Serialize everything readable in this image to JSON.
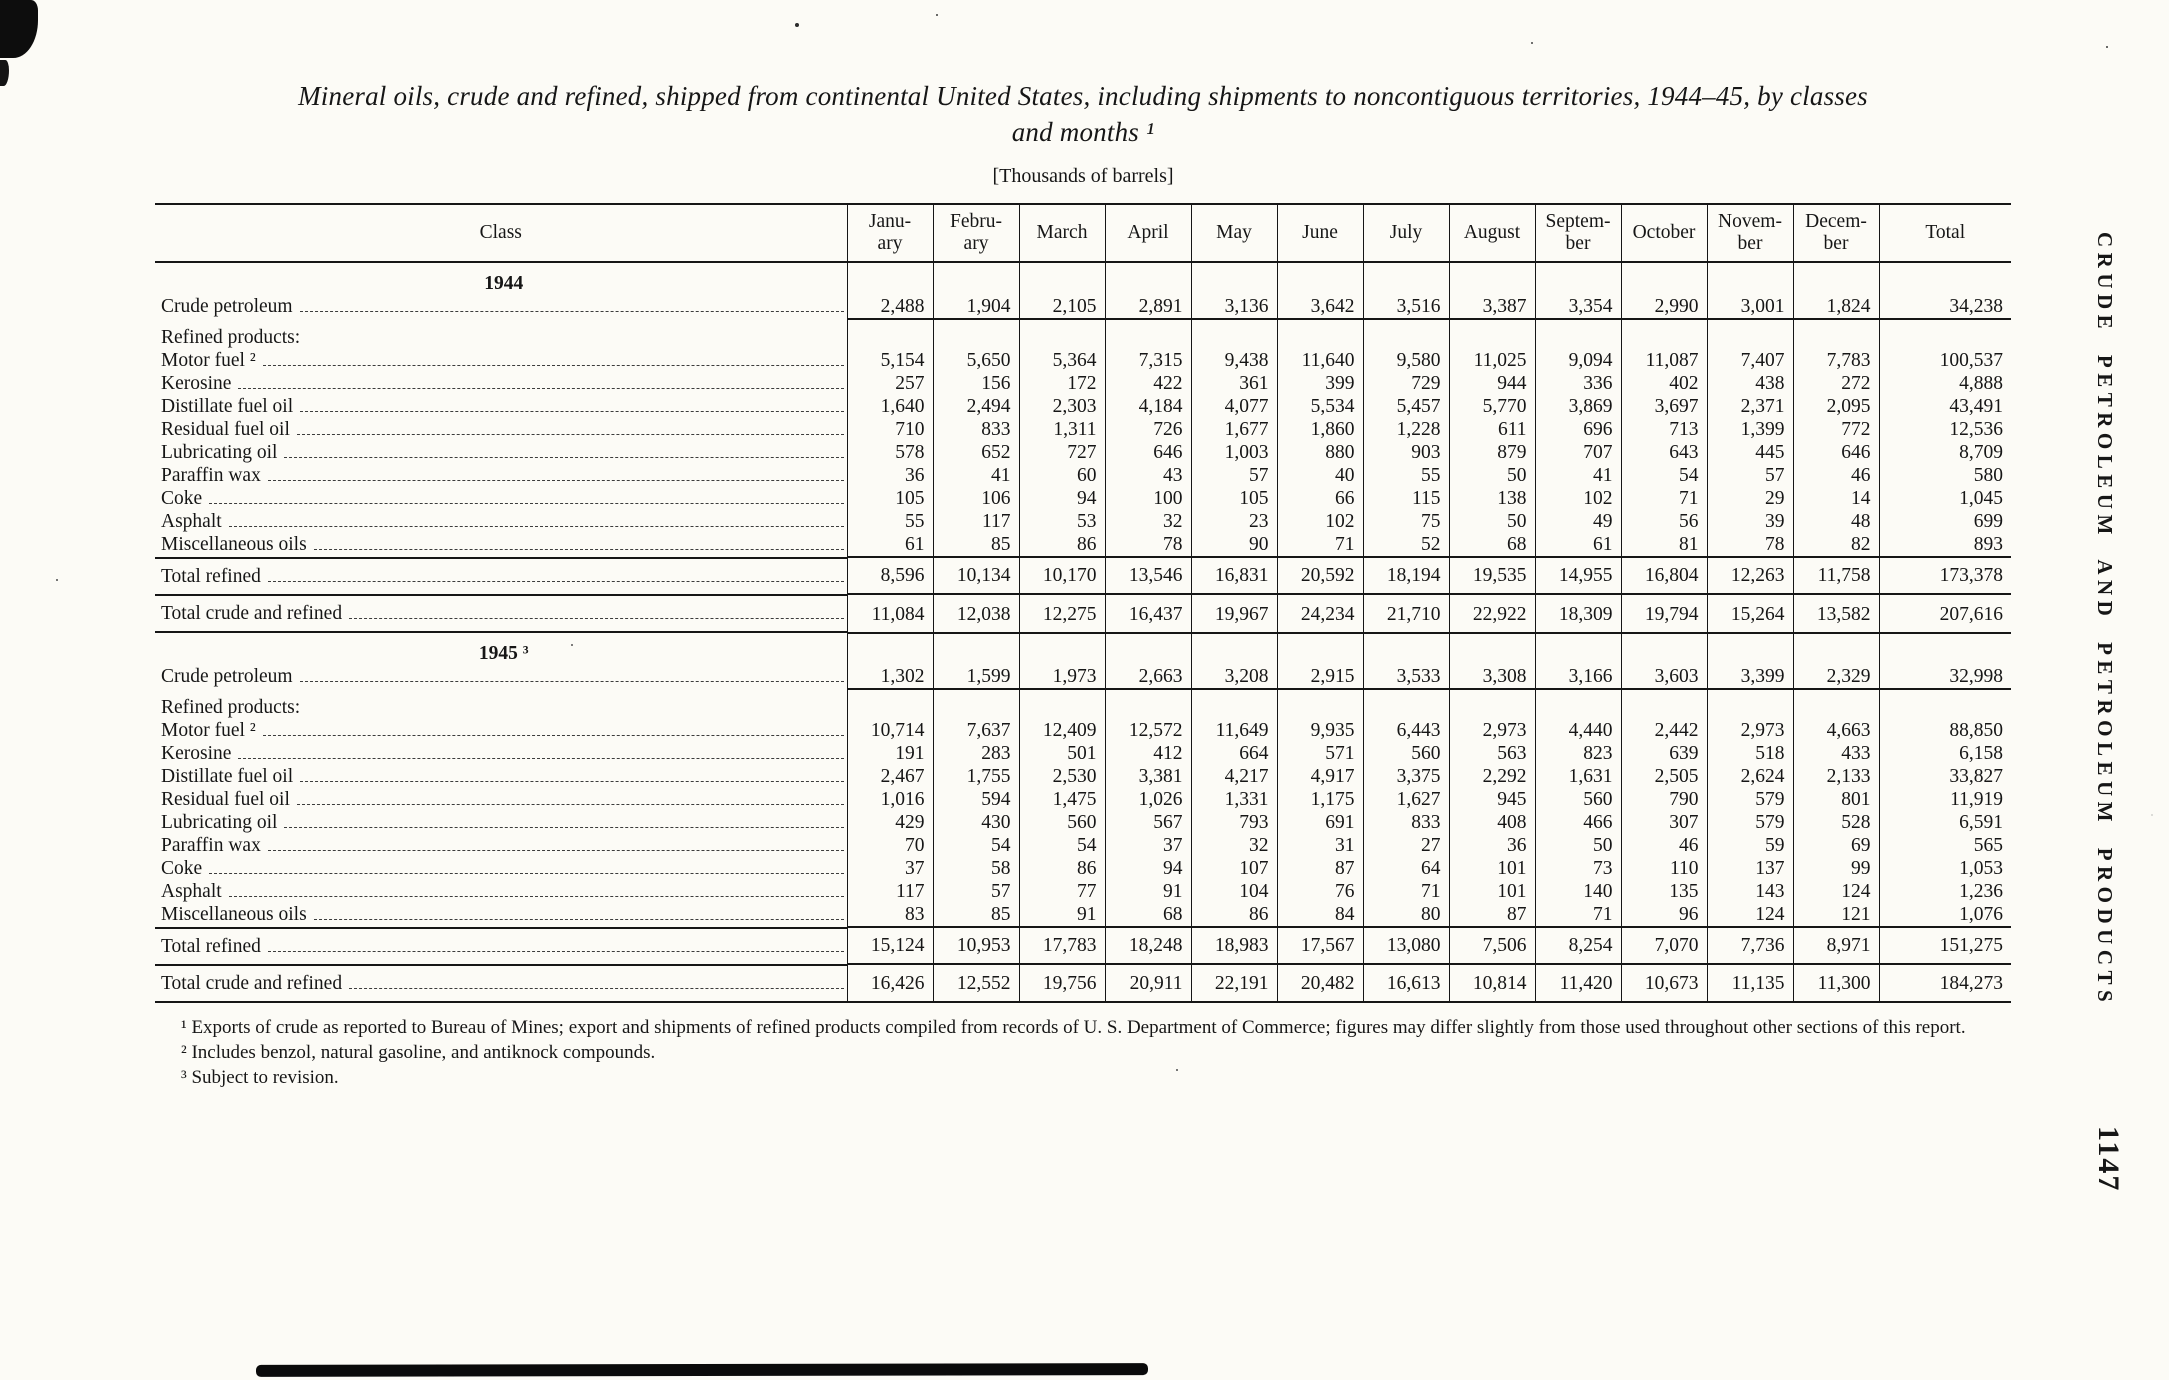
{
  "page": {
    "title_line1": "Mineral oils, crude and refined, shipped from continental United States, including shipments to noncontiguous territories, 1944–45, by classes",
    "title_line2": "and months ¹",
    "units_note": "[Thousands of barrels]",
    "side_label": "CRUDE PETROLEUM AND PETROLEUM PRODUCTS",
    "page_number": "1147"
  },
  "table": {
    "columns": [
      "Class",
      "Janu-\nary",
      "Febru-\nary",
      "March",
      "April",
      "May",
      "June",
      "July",
      "August",
      "Septem-\nber",
      "October",
      "Novem-\nber",
      "Decem-\nber",
      "Total"
    ],
    "rows": [
      {
        "type": "year",
        "label": "1944"
      },
      {
        "type": "data",
        "label": "Crude petroleum",
        "indent": 0,
        "rules": [
          "numbottom"
        ],
        "values": [
          "2,488",
          "1,904",
          "2,105",
          "2,891",
          "3,136",
          "3,642",
          "3,516",
          "3,387",
          "3,354",
          "2,990",
          "3,001",
          "1,824",
          "34,238"
        ]
      },
      {
        "type": "group",
        "label": "Refined products:"
      },
      {
        "type": "data",
        "label": "Motor fuel ²",
        "indent": 1,
        "values": [
          "5,154",
          "5,650",
          "5,364",
          "7,315",
          "9,438",
          "11,640",
          "9,580",
          "11,025",
          "9,094",
          "11,087",
          "7,407",
          "7,783",
          "100,537"
        ]
      },
      {
        "type": "data",
        "label": "Kerosine",
        "indent": 1,
        "values": [
          "257",
          "156",
          "172",
          "422",
          "361",
          "399",
          "729",
          "944",
          "336",
          "402",
          "438",
          "272",
          "4,888"
        ]
      },
      {
        "type": "data",
        "label": "Distillate fuel oil",
        "indent": 1,
        "values": [
          "1,640",
          "2,494",
          "2,303",
          "4,184",
          "4,077",
          "5,534",
          "5,457",
          "5,770",
          "3,869",
          "3,697",
          "2,371",
          "2,095",
          "43,491"
        ]
      },
      {
        "type": "data",
        "label": "Residual fuel oil",
        "indent": 1,
        "values": [
          "710",
          "833",
          "1,311",
          "726",
          "1,677",
          "1,860",
          "1,228",
          "611",
          "696",
          "713",
          "1,399",
          "772",
          "12,536"
        ]
      },
      {
        "type": "data",
        "label": "Lubricating oil",
        "indent": 1,
        "values": [
          "578",
          "652",
          "727",
          "646",
          "1,003",
          "880",
          "903",
          "879",
          "707",
          "643",
          "445",
          "646",
          "8,709"
        ]
      },
      {
        "type": "data",
        "label": "Paraffin wax",
        "indent": 1,
        "values": [
          "36",
          "41",
          "60",
          "43",
          "57",
          "40",
          "55",
          "50",
          "41",
          "54",
          "57",
          "46",
          "580"
        ]
      },
      {
        "type": "data",
        "label": "Coke",
        "indent": 1,
        "values": [
          "105",
          "106",
          "94",
          "100",
          "105",
          "66",
          "115",
          "138",
          "102",
          "71",
          "29",
          "14",
          "1,045"
        ]
      },
      {
        "type": "data",
        "label": "Asphalt",
        "indent": 1,
        "values": [
          "55",
          "117",
          "53",
          "32",
          "23",
          "102",
          "75",
          "50",
          "49",
          "56",
          "39",
          "48",
          "699"
        ]
      },
      {
        "type": "data",
        "label": "Miscellaneous oils",
        "indent": 1,
        "values": [
          "61",
          "85",
          "86",
          "78",
          "90",
          "71",
          "52",
          "68",
          "61",
          "81",
          "78",
          "82",
          "893"
        ]
      },
      {
        "type": "total",
        "label": "Total refined",
        "indent": 2,
        "rules": [
          "top"
        ],
        "values": [
          "8,596",
          "10,134",
          "10,170",
          "13,546",
          "16,831",
          "20,592",
          "18,194",
          "19,535",
          "14,955",
          "16,804",
          "12,263",
          "11,758",
          "173,378"
        ]
      },
      {
        "type": "total",
        "label": "Total crude and refined",
        "indent": 2,
        "rules": [
          "top",
          "bottom"
        ],
        "values": [
          "11,084",
          "12,038",
          "12,275",
          "16,437",
          "19,967",
          "24,234",
          "21,710",
          "22,922",
          "18,309",
          "19,794",
          "15,264",
          "13,582",
          "207,616"
        ]
      },
      {
        "type": "year",
        "label": "1945 ³"
      },
      {
        "type": "data",
        "label": "Crude petroleum",
        "indent": 0,
        "rules": [
          "numbottom"
        ],
        "values": [
          "1,302",
          "1,599",
          "1,973",
          "2,663",
          "3,208",
          "2,915",
          "3,533",
          "3,308",
          "3,166",
          "3,603",
          "3,399",
          "2,329",
          "32,998"
        ]
      },
      {
        "type": "group",
        "label": "Refined products:"
      },
      {
        "type": "data",
        "label": "Motor fuel ²",
        "indent": 1,
        "values": [
          "10,714",
          "7,637",
          "12,409",
          "12,572",
          "11,649",
          "9,935",
          "6,443",
          "2,973",
          "4,440",
          "2,442",
          "2,973",
          "4,663",
          "88,850"
        ]
      },
      {
        "type": "data",
        "label": "Kerosine",
        "indent": 1,
        "values": [
          "191",
          "283",
          "501",
          "412",
          "664",
          "571",
          "560",
          "563",
          "823",
          "639",
          "518",
          "433",
          "6,158"
        ]
      },
      {
        "type": "data",
        "label": "Distillate fuel oil",
        "indent": 1,
        "values": [
          "2,467",
          "1,755",
          "2,530",
          "3,381",
          "4,217",
          "4,917",
          "3,375",
          "2,292",
          "1,631",
          "2,505",
          "2,624",
          "2,133",
          "33,827"
        ]
      },
      {
        "type": "data",
        "label": "Residual fuel oil",
        "indent": 1,
        "values": [
          "1,016",
          "594",
          "1,475",
          "1,026",
          "1,331",
          "1,175",
          "1,627",
          "945",
          "560",
          "790",
          "579",
          "801",
          "11,919"
        ]
      },
      {
        "type": "data",
        "label": "Lubricating oil",
        "indent": 1,
        "values": [
          "429",
          "430",
          "560",
          "567",
          "793",
          "691",
          "833",
          "408",
          "466",
          "307",
          "579",
          "528",
          "6,591"
        ]
      },
      {
        "type": "data",
        "label": "Paraffin wax",
        "indent": 1,
        "values": [
          "70",
          "54",
          "54",
          "37",
          "32",
          "31",
          "27",
          "36",
          "50",
          "46",
          "59",
          "69",
          "565"
        ]
      },
      {
        "type": "data",
        "label": "Coke",
        "indent": 1,
        "values": [
          "37",
          "58",
          "86",
          "94",
          "107",
          "87",
          "64",
          "101",
          "73",
          "110",
          "137",
          "99",
          "1,053"
        ]
      },
      {
        "type": "data",
        "label": "Asphalt",
        "indent": 1,
        "values": [
          "117",
          "57",
          "77",
          "91",
          "104",
          "76",
          "71",
          "101",
          "140",
          "135",
          "143",
          "124",
          "1,236"
        ]
      },
      {
        "type": "data",
        "label": "Miscellaneous oils",
        "indent": 1,
        "values": [
          "83",
          "85",
          "91",
          "68",
          "86",
          "84",
          "80",
          "87",
          "71",
          "96",
          "124",
          "121",
          "1,076"
        ]
      },
      {
        "type": "total",
        "label": "Total refined",
        "indent": 2,
        "rules": [
          "top"
        ],
        "values": [
          "15,124",
          "10,953",
          "17,783",
          "18,248",
          "18,983",
          "17,567",
          "13,080",
          "7,506",
          "8,254",
          "7,070",
          "7,736",
          "8,971",
          "151,275"
        ]
      },
      {
        "type": "total",
        "label": "Total crude and refined",
        "indent": 2,
        "rules": [
          "top"
        ],
        "values": [
          "16,426",
          "12,552",
          "19,756",
          "20,911",
          "22,191",
          "20,482",
          "16,613",
          "10,814",
          "11,420",
          "10,673",
          "11,135",
          "11,300",
          "184,273"
        ]
      }
    ]
  },
  "footnotes": [
    "¹ Exports of crude as reported to Bureau of Mines; export and shipments of refined products compiled from records of U. S. Department of Commerce; figures may differ slightly from those used throughout other sections of this report.",
    "² Includes benzol, natural gasoline, and antiknock compounds.",
    "³ Subject to revision."
  ]
}
